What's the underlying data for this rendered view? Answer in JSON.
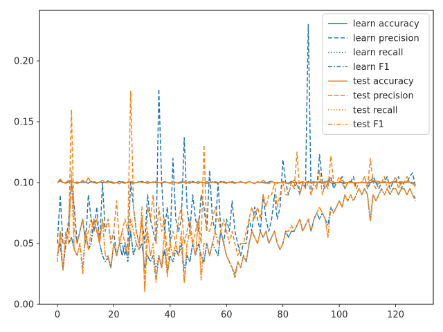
{
  "chart_data": {
    "type": "line",
    "title": "",
    "xlabel": "",
    "ylabel": "",
    "xlim": [
      -6.35,
      133.35
    ],
    "ylim": [
      0.0,
      0.2415
    ],
    "xticks": [
      0,
      20,
      40,
      60,
      80,
      100,
      120
    ],
    "yticks": [
      0.0,
      0.05,
      0.1,
      0.15,
      0.2
    ],
    "ytick_labels": [
      "0.00",
      "0.05",
      "0.10",
      "0.15",
      "0.20"
    ],
    "grid": false,
    "legend_position": "top-right",
    "colors": {
      "learn": "#1f77b4",
      "test": "#ff7f0e"
    },
    "series": [
      {
        "name": "learn accuracy",
        "color": "#1f77b4",
        "dash": "solid",
        "values": [
          0.1,
          0.1015,
          0.1,
          0.0995,
          0.1005,
          0.101,
          0.1,
          0.0995,
          0.1,
          0.1005,
          0.1,
          0.0995,
          0.101,
          0.1,
          0.0995,
          0.1005,
          0.1,
          0.1,
          0.1015,
          0.1,
          0.0995,
          0.1,
          0.101,
          0.1,
          0.0995,
          0.1005,
          0.1,
          0.0995,
          0.1,
          0.1005,
          0.101,
          0.1,
          0.0995,
          0.1,
          0.1005,
          0.1,
          0.1,
          0.0995,
          0.1005,
          0.1,
          0.0995,
          0.101,
          0.1,
          0.0995,
          0.1,
          0.1005,
          0.1,
          0.0995,
          0.101,
          0.1,
          0.0995,
          0.1005,
          0.1,
          0.0995,
          0.1,
          0.1005,
          0.1,
          0.0995,
          0.101,
          0.1,
          0.0995,
          0.1005,
          0.1,
          0.0995,
          0.1,
          0.1005,
          0.1,
          0.0995,
          0.101,
          0.1,
          0.0995,
          0.1005,
          0.1,
          0.1,
          0.0995,
          0.1005,
          0.101,
          0.1,
          0.0995,
          0.1,
          0.1005,
          0.1,
          0.0995,
          0.101,
          0.1,
          0.1,
          0.0995,
          0.1005,
          0.1,
          0.101,
          0.0995,
          0.1,
          0.1005,
          0.1,
          0.0995,
          0.1,
          0.1015,
          0.1,
          0.099,
          0.1,
          0.1005,
          0.1,
          0.0995,
          0.1,
          0.101,
          0.1,
          0.0995,
          0.1,
          0.1005,
          0.1,
          0.0995,
          0.1,
          0.101,
          0.1,
          0.0995,
          0.1,
          0.1005,
          0.1,
          0.0995,
          0.1,
          0.101,
          0.1,
          0.0995,
          0.1,
          0.1005,
          0.1,
          0.1,
          0.0995
        ]
      },
      {
        "name": "learn precision",
        "color": "#1f77b4",
        "dash": "dashed",
        "values": [
          0.05,
          0.09,
          0.05,
          0.05,
          0.07,
          0.101,
          0.08,
          0.05,
          0.06,
          0.07,
          0.05,
          0.09,
          0.07,
          0.06,
          0.08,
          0.05,
          0.1,
          0.06,
          0.07,
          0.05,
          0.06,
          0.04,
          0.05,
          0.05,
          0.04,
          0.05,
          0.1,
          0.08,
          0.06,
          0.05,
          0.07,
          0.05,
          0.09,
          0.07,
          0.06,
          0.05,
          0.177,
          0.1,
          0.06,
          0.08,
          0.05,
          0.12,
          0.07,
          0.06,
          0.07,
          0.137,
          0.08,
          0.06,
          0.09,
          0.07,
          0.06,
          0.09,
          0.08,
          0.06,
          0.11,
          0.07,
          0.06,
          0.1,
          0.06,
          0.05,
          0.07,
          0.06,
          0.085,
          0.06,
          0.05,
          0.04,
          0.05,
          0.05,
          0.07,
          0.06,
          0.08,
          0.07,
          0.06,
          0.09,
          0.07,
          0.06,
          0.07,
          0.09,
          0.07,
          0.08,
          0.119,
          0.1,
          0.09,
          0.1,
          0.095,
          0.1,
          0.09,
          0.1,
          0.095,
          0.23,
          0.09,
          0.1,
          0.095,
          0.123,
          0.1,
          0.095,
          0.1,
          0.105,
          0.095,
          0.1,
          0.1,
          0.105,
          0.095,
          0.1,
          0.1,
          0.105,
          0.095,
          0.1,
          0.1,
          0.105,
          0.095,
          0.1,
          0.105,
          0.1,
          0.095,
          0.1,
          0.1,
          0.105,
          0.095,
          0.1,
          0.1,
          0.105,
          0.095,
          0.1,
          0.1,
          0.105,
          0.108,
          0.097
        ]
      },
      {
        "name": "learn recall",
        "color": "#1f77b4",
        "dash": "dotted",
        "values": [
          0.04,
          0.05,
          0.03,
          0.05,
          0.05,
          0.055,
          0.045,
          0.04,
          0.05,
          0.03,
          0.06,
          0.045,
          0.05,
          0.07,
          0.06,
          0.05,
          0.04,
          0.035,
          0.04,
          0.03,
          0.05,
          0.04,
          0.05,
          0.04,
          0.05,
          0.035,
          0.06,
          0.04,
          0.05,
          0.045,
          0.05,
          0.03,
          0.04,
          0.035,
          0.04,
          0.03,
          0.04,
          0.03,
          0.045,
          0.03,
          0.04,
          0.035,
          0.045,
          0.04,
          0.05,
          0.03,
          0.04,
          0.035,
          0.05,
          0.04,
          0.05,
          0.04,
          0.035,
          0.05,
          0.04,
          0.05,
          0.045,
          0.04,
          0.06,
          0.05,
          0.04,
          0.035,
          0.03,
          0.025,
          0.035,
          0.03,
          0.04,
          0.035,
          0.05,
          0.06,
          0.055,
          0.05,
          0.06,
          0.055,
          0.06,
          0.05,
          0.055,
          0.06,
          0.05,
          0.045,
          0.05,
          0.06,
          0.055,
          0.06,
          0.06,
          0.065,
          0.07,
          0.06,
          0.065,
          0.07,
          0.06,
          0.07,
          0.075,
          0.07,
          0.075,
          0.07,
          0.065,
          0.08,
          0.075,
          0.08,
          0.085,
          0.08,
          0.09,
          0.085,
          0.09,
          0.085,
          0.09,
          0.095,
          0.09,
          0.095,
          0.09,
          0.07,
          0.09,
          0.085,
          0.09,
          0.095,
          0.09,
          0.095,
          0.09,
          0.095,
          0.095,
          0.09,
          0.095,
          0.095,
          0.09,
          0.095,
          0.09,
          0.088
        ]
      },
      {
        "name": "learn F1",
        "color": "#1f77b4",
        "dash": "dashdot",
        "values": [
          0.04,
          0.05,
          0.028,
          0.05,
          0.05,
          0.055,
          0.045,
          0.04,
          0.05,
          0.025,
          0.06,
          0.045,
          0.05,
          0.07,
          0.06,
          0.05,
          0.04,
          0.035,
          0.038,
          0.03,
          0.05,
          0.04,
          0.05,
          0.04,
          0.05,
          0.035,
          0.06,
          0.04,
          0.05,
          0.045,
          0.05,
          0.03,
          0.04,
          0.035,
          0.04,
          0.02,
          0.04,
          0.03,
          0.045,
          0.025,
          0.04,
          0.035,
          0.045,
          0.04,
          0.05,
          0.02,
          0.04,
          0.035,
          0.05,
          0.04,
          0.05,
          0.04,
          0.035,
          0.05,
          0.04,
          0.05,
          0.045,
          0.04,
          0.06,
          0.05,
          0.04,
          0.035,
          0.03,
          0.022,
          0.035,
          0.03,
          0.04,
          0.035,
          0.05,
          0.06,
          0.055,
          0.05,
          0.06,
          0.055,
          0.06,
          0.05,
          0.055,
          0.06,
          0.05,
          0.045,
          0.05,
          0.06,
          0.055,
          0.06,
          0.06,
          0.065,
          0.07,
          0.06,
          0.065,
          0.07,
          0.06,
          0.07,
          0.075,
          0.07,
          0.075,
          0.07,
          0.065,
          0.08,
          0.075,
          0.08,
          0.085,
          0.08,
          0.09,
          0.085,
          0.09,
          0.085,
          0.09,
          0.095,
          0.09,
          0.095,
          0.09,
          0.068,
          0.09,
          0.085,
          0.09,
          0.095,
          0.09,
          0.095,
          0.09,
          0.095,
          0.095,
          0.09,
          0.095,
          0.095,
          0.09,
          0.095,
          0.09,
          0.087
        ]
      },
      {
        "name": "test accuracy",
        "color": "#ff7f0e",
        "dash": "solid",
        "values": [
          0.1,
          0.103,
          0.1,
          0.1,
          0.102,
          0.101,
          0.1,
          0.1005,
          0.1,
          0.102,
          0.1,
          0.104,
          0.1,
          0.101,
          0.1,
          0.1,
          0.102,
          0.1,
          0.1,
          0.101,
          0.1,
          0.1,
          0.099,
          0.101,
          0.1,
          0.1,
          0.101,
          0.1,
          0.1,
          0.101,
          0.1,
          0.1,
          0.101,
          0.1,
          0.1,
          0.101,
          0.1,
          0.1,
          0.101,
          0.1,
          0.1,
          0.101,
          0.1,
          0.1,
          0.101,
          0.1,
          0.1,
          0.101,
          0.1,
          0.1,
          0.101,
          0.1,
          0.1,
          0.101,
          0.1,
          0.1,
          0.101,
          0.1,
          0.1,
          0.101,
          0.1,
          0.1,
          0.101,
          0.1,
          0.1,
          0.101,
          0.1,
          0.1,
          0.101,
          0.1,
          0.099,
          0.101,
          0.1,
          0.102,
          0.1,
          0.099,
          0.101,
          0.1,
          0.1,
          0.1,
          0.101,
          0.1,
          0.099,
          0.1,
          0.102,
          0.1,
          0.1,
          0.101,
          0.1,
          0.1,
          0.1,
          0.101,
          0.1,
          0.101,
          0.1,
          0.101,
          0.1,
          0.102,
          0.1,
          0.1,
          0.1,
          0.102,
          0.1,
          0.1,
          0.1,
          0.1,
          0.1,
          0.1,
          0.1,
          0.1,
          0.1,
          0.102,
          0.102,
          0.101,
          0.101,
          0.1,
          0.101,
          0.1,
          0.1,
          0.101,
          0.1,
          0.1,
          0.101,
          0.1,
          0.101,
          0.1,
          0.099,
          0.1
        ]
      },
      {
        "name": "test precision",
        "color": "#ff7f0e",
        "dash": "dashed",
        "values": [
          0.04,
          0.06,
          0.05,
          0.05,
          0.06,
          0.16,
          0.06,
          0.05,
          0.06,
          0.07,
          0.05,
          0.06,
          0.07,
          0.06,
          0.07,
          0.05,
          0.07,
          0.06,
          0.07,
          0.05,
          0.06,
          0.085,
          0.05,
          0.06,
          0.07,
          0.06,
          0.175,
          0.08,
          0.06,
          0.05,
          0.07,
          0.012,
          0.08,
          0.07,
          0.09,
          0.05,
          0.08,
          0.06,
          0.07,
          0.04,
          0.05,
          0.06,
          0.05,
          0.07,
          0.08,
          0.05,
          0.06,
          0.07,
          0.05,
          0.06,
          0.07,
          0.05,
          0.131,
          0.06,
          0.06,
          0.07,
          0.08,
          0.07,
          0.06,
          0.07,
          0.06,
          0.05,
          0.06,
          0.05,
          0.04,
          0.05,
          0.05,
          0.06,
          0.07,
          0.08,
          0.07,
          0.08,
          0.07,
          0.09,
          0.08,
          0.09,
          0.09,
          0.1,
          0.08,
          0.09,
          0.1,
          0.09,
          0.09,
          0.1,
          0.095,
          0.125,
          0.09,
          0.1,
          0.095,
          0.1,
          0.09,
          0.1,
          0.095,
          0.11,
          0.09,
          0.1,
          0.095,
          0.122,
          0.1,
          0.1,
          0.105,
          0.1,
          0.095,
          0.1,
          0.1,
          0.1,
          0.095,
          0.1,
          0.1,
          0.105,
          0.095,
          0.12,
          0.1,
          0.095,
          0.1,
          0.1,
          0.105,
          0.095,
          0.1,
          0.1,
          0.105,
          0.095,
          0.1,
          0.1,
          0.105,
          0.1,
          0.1,
          0.096
        ]
      },
      {
        "name": "test recall",
        "color": "#ff7f0e",
        "dash": "dotted",
        "values": [
          0.035,
          0.06,
          0.03,
          0.06,
          0.05,
          0.11,
          0.045,
          0.04,
          0.05,
          0.03,
          0.06,
          0.045,
          0.06,
          0.07,
          0.06,
          0.05,
          0.07,
          0.04,
          0.04,
          0.03,
          0.05,
          0.04,
          0.05,
          0.06,
          0.05,
          0.04,
          0.07,
          0.06,
          0.05,
          0.045,
          0.08,
          0.012,
          0.06,
          0.04,
          0.05,
          0.02,
          0.04,
          0.03,
          0.06,
          0.025,
          0.05,
          0.04,
          0.05,
          0.04,
          0.06,
          0.02,
          0.05,
          0.06,
          0.05,
          0.04,
          0.07,
          0.02,
          0.05,
          0.05,
          0.04,
          0.05,
          0.06,
          0.05,
          0.06,
          0.05,
          0.04,
          0.035,
          0.03,
          0.025,
          0.035,
          0.03,
          0.04,
          0.035,
          0.05,
          0.06,
          0.055,
          0.05,
          0.06,
          0.055,
          0.06,
          0.05,
          0.055,
          0.06,
          0.05,
          0.045,
          0.05,
          0.06,
          0.06,
          0.065,
          0.06,
          0.065,
          0.07,
          0.06,
          0.065,
          0.07,
          0.06,
          0.07,
          0.075,
          0.08,
          0.075,
          0.07,
          0.055,
          0.08,
          0.075,
          0.08,
          0.085,
          0.08,
          0.09,
          0.085,
          0.09,
          0.085,
          0.09,
          0.095,
          0.09,
          0.095,
          0.09,
          0.07,
          0.09,
          0.085,
          0.09,
          0.095,
          0.09,
          0.095,
          0.09,
          0.095,
          0.095,
          0.09,
          0.095,
          0.095,
          0.09,
          0.095,
          0.09,
          0.086
        ]
      },
      {
        "name": "test F1",
        "color": "#ff7f0e",
        "dash": "dashdot",
        "values": [
          0.035,
          0.06,
          0.028,
          0.06,
          0.05,
          0.105,
          0.045,
          0.04,
          0.05,
          0.025,
          0.06,
          0.045,
          0.06,
          0.07,
          0.06,
          0.05,
          0.07,
          0.04,
          0.038,
          0.03,
          0.05,
          0.04,
          0.05,
          0.06,
          0.05,
          0.04,
          0.07,
          0.06,
          0.05,
          0.045,
          0.08,
          0.01,
          0.06,
          0.04,
          0.05,
          0.018,
          0.04,
          0.03,
          0.06,
          0.022,
          0.05,
          0.04,
          0.05,
          0.04,
          0.06,
          0.018,
          0.05,
          0.06,
          0.05,
          0.04,
          0.07,
          0.02,
          0.05,
          0.05,
          0.04,
          0.05,
          0.06,
          0.05,
          0.06,
          0.05,
          0.04,
          0.035,
          0.03,
          0.022,
          0.035,
          0.03,
          0.04,
          0.035,
          0.05,
          0.06,
          0.055,
          0.05,
          0.06,
          0.055,
          0.06,
          0.05,
          0.055,
          0.06,
          0.05,
          0.045,
          0.05,
          0.06,
          0.06,
          0.065,
          0.06,
          0.065,
          0.07,
          0.06,
          0.065,
          0.07,
          0.06,
          0.07,
          0.075,
          0.08,
          0.075,
          0.07,
          0.055,
          0.08,
          0.075,
          0.08,
          0.085,
          0.08,
          0.09,
          0.085,
          0.09,
          0.085,
          0.09,
          0.095,
          0.09,
          0.095,
          0.09,
          0.068,
          0.09,
          0.085,
          0.09,
          0.095,
          0.09,
          0.095,
          0.09,
          0.095,
          0.095,
          0.09,
          0.095,
          0.095,
          0.09,
          0.095,
          0.09,
          0.085
        ]
      }
    ]
  }
}
